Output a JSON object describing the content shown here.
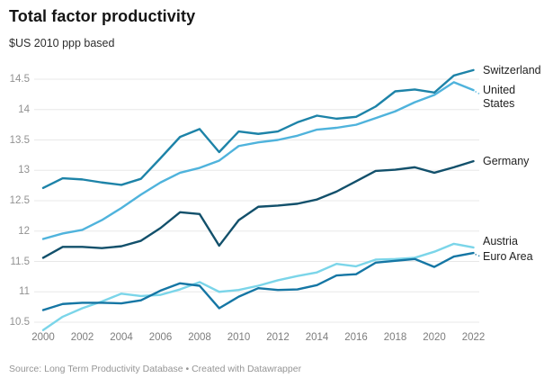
{
  "header": {
    "title": "Total factor productivity",
    "subtitle": "$US 2010 ppp based"
  },
  "footer": {
    "source": "Source: Long Term Productivity Database • Created with Datawrapper"
  },
  "chart_data": {
    "type": "line",
    "title": "Total factor productivity",
    "subtitle": "$US 2010 ppp based",
    "source": "Source: Long Term Productivity Database • Created with Datawrapper",
    "x": [
      2000,
      2001,
      2002,
      2003,
      2004,
      2005,
      2006,
      2007,
      2008,
      2009,
      2010,
      2011,
      2012,
      2013,
      2014,
      2015,
      2016,
      2017,
      2018,
      2019,
      2020,
      2021,
      2022
    ],
    "x_ticks": [
      2000,
      2002,
      2004,
      2006,
      2008,
      2010,
      2012,
      2014,
      2016,
      2018,
      2020,
      2022
    ],
    "y_ticks": [
      10.5,
      11,
      11.5,
      12,
      12.5,
      13,
      13.5,
      14,
      14.5
    ],
    "ylim": [
      10.3,
      14.8
    ],
    "grid": "horizontal-only",
    "legend_position": "direct-labels-right",
    "grid_color": "#e8e8e8",
    "series": [
      {
        "name": "Austria",
        "label": "Austria",
        "color": "#7bd5e9",
        "values": [
          10.37,
          10.59,
          10.73,
          10.84,
          10.97,
          10.93,
          10.95,
          11.04,
          11.16,
          11.0,
          11.03,
          11.1,
          11.19,
          11.26,
          11.32,
          11.46,
          11.42,
          11.53,
          11.54,
          11.56,
          11.66,
          11.79,
          11.73
        ]
      },
      {
        "name": "Euro Area",
        "label": "Euro Area",
        "color": "#1576a4",
        "values": [
          10.7,
          10.8,
          10.82,
          10.82,
          10.81,
          10.86,
          11.02,
          11.14,
          11.1,
          10.73,
          10.92,
          11.06,
          11.03,
          11.04,
          11.11,
          11.27,
          11.29,
          11.48,
          11.51,
          11.54,
          11.41,
          11.58,
          11.64
        ]
      },
      {
        "name": "Germany",
        "label": "Germany",
        "color": "#12506b",
        "values": [
          11.56,
          11.74,
          11.74,
          11.72,
          11.75,
          11.84,
          12.05,
          12.31,
          12.28,
          11.76,
          12.18,
          12.4,
          12.42,
          12.45,
          12.52,
          12.65,
          12.82,
          12.99,
          13.01,
          13.05,
          12.96,
          13.05,
          13.15
        ]
      },
      {
        "name": "United States",
        "label": "United\nStates",
        "color": "#4fb3dc",
        "values": [
          11.87,
          11.96,
          12.02,
          12.18,
          12.38,
          12.6,
          12.8,
          12.96,
          13.04,
          13.16,
          13.4,
          13.46,
          13.5,
          13.57,
          13.67,
          13.7,
          13.75,
          13.86,
          13.97,
          14.12,
          14.24,
          14.45,
          14.32
        ]
      },
      {
        "name": "Switzerland",
        "label": "Switzerland",
        "color": "#1d83a8",
        "values": [
          12.71,
          12.87,
          12.85,
          12.8,
          12.76,
          12.86,
          13.2,
          13.55,
          13.68,
          13.3,
          13.64,
          13.6,
          13.64,
          13.79,
          13.9,
          13.85,
          13.88,
          14.05,
          14.3,
          14.33,
          14.28,
          14.56,
          14.65
        ]
      }
    ]
  }
}
